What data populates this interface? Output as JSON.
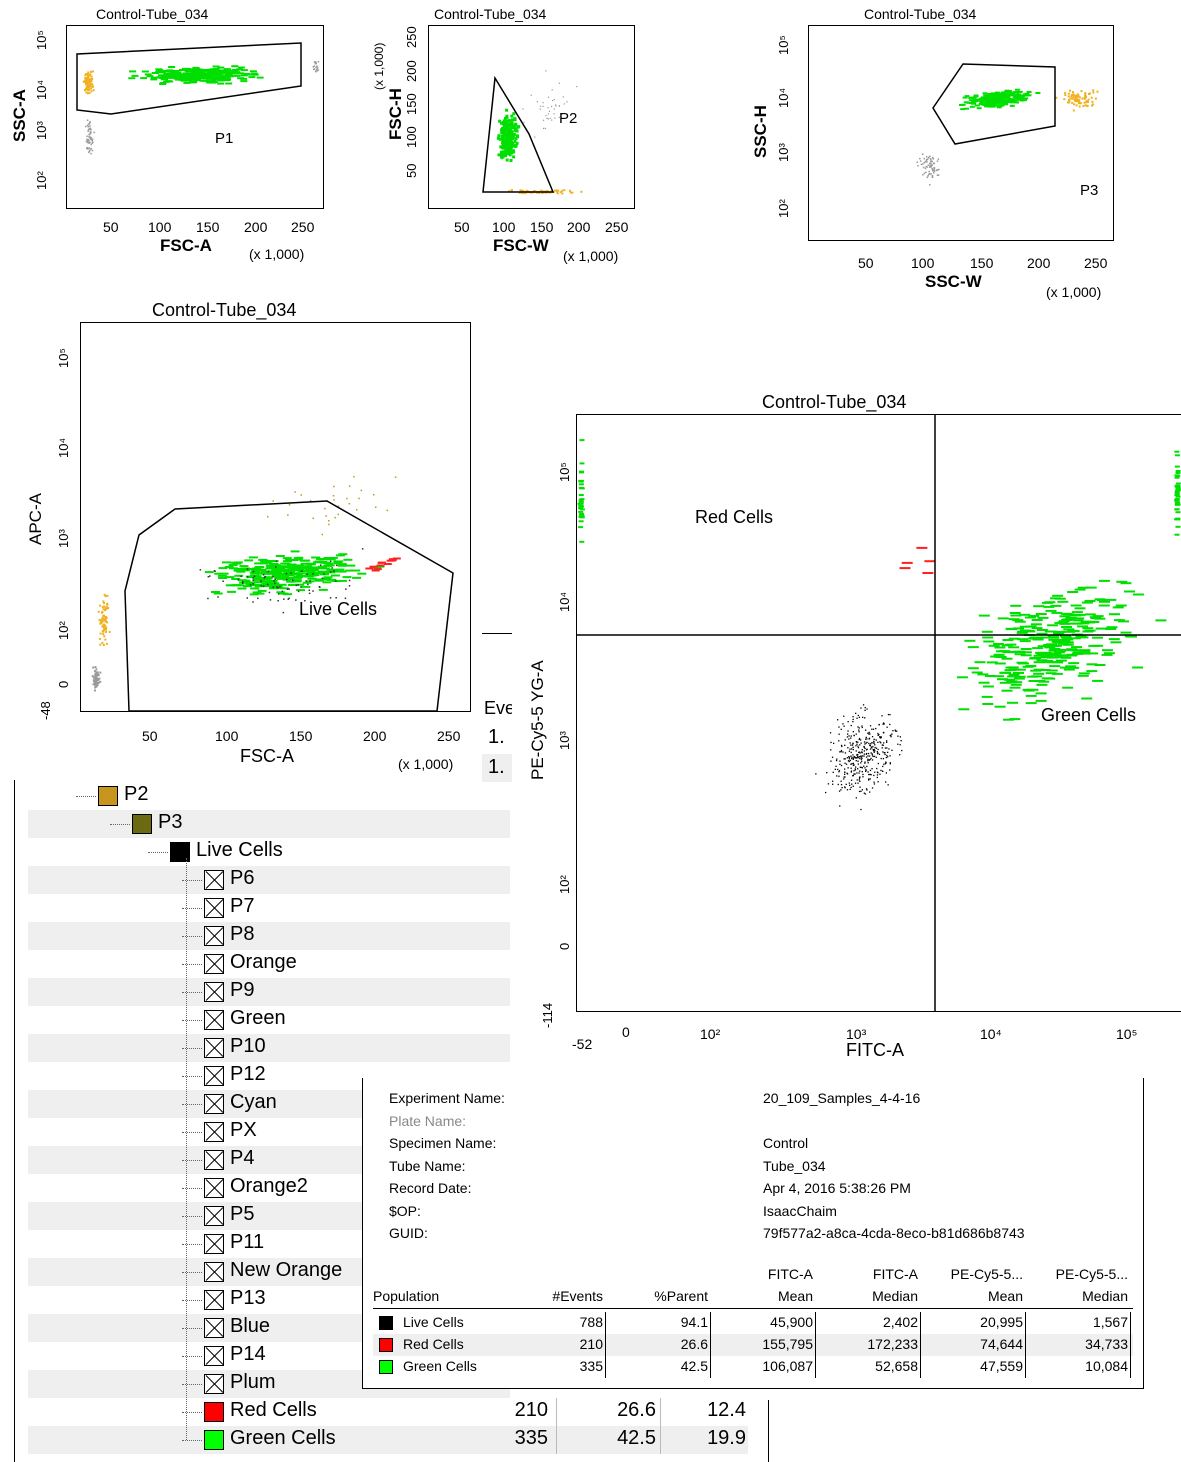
{
  "plots": {
    "p1": {
      "title": "Control-Tube_034",
      "xlabel": "FSC-A",
      "ylabel": "SSC-A",
      "mult": "(x 1,000)",
      "xticks": [
        "50",
        "100",
        "150",
        "200",
        "250"
      ],
      "yticks": [
        "10^2",
        "10^3",
        "10^4",
        "10^5"
      ],
      "gate": "P1"
    },
    "p2": {
      "title": "Control-Tube_034",
      "xlabel": "FSC-W",
      "ylabel": "FSC-H",
      "ymult": "(x 1,000)",
      "mult": "(x 1,000)",
      "xticks": [
        "50",
        "100",
        "150",
        "200",
        "250"
      ],
      "yticks": [
        "50",
        "100",
        "150",
        "200",
        "250"
      ],
      "gate": "P2"
    },
    "p3": {
      "title": "Control-Tube_034",
      "xlabel": "SSC-W",
      "ylabel": "SSC-H",
      "mult": "(x 1,000)",
      "xticks": [
        "50",
        "100",
        "150",
        "200",
        "250"
      ],
      "yticks": [
        "10^2",
        "10^3",
        "10^4",
        "10^5"
      ],
      "gate": "P3"
    },
    "p4": {
      "title": "Control-Tube_034",
      "xlabel": "FSC-A",
      "ylabel": "APC-A",
      "mult": "(x 1,000)",
      "xticks": [
        "50",
        "100",
        "150",
        "200",
        "250"
      ],
      "yticks": [
        "-48",
        "0",
        "10^2",
        "10^3",
        "10^4",
        "10^5"
      ],
      "gate": "Live Cells"
    },
    "p5": {
      "title": "Control-Tube_034",
      "xlabel": "FITC-A",
      "ylabel": "PE-Cy5-5 YG-A",
      "xticks": [
        "-52",
        "0",
        "10^2",
        "10^3",
        "10^4",
        "10^5"
      ],
      "yticks": [
        "-114",
        "0",
        "10^2",
        "10^3",
        "10^4",
        "10^5"
      ],
      "q_red": "Red Cells",
      "q_green": "Green Cells"
    }
  },
  "partial": {
    "events_header": "Eve",
    "v1": "1.",
    "v2": "1."
  },
  "hierarchy": {
    "items": [
      {
        "label": "P2",
        "color": "#c8961e",
        "indent": 0
      },
      {
        "label": "P3",
        "color": "#6b6a12",
        "indent": 1
      },
      {
        "label": "Live Cells",
        "color": "#000000",
        "indent": 2
      },
      {
        "label": "P6",
        "indent": 3
      },
      {
        "label": "P7",
        "indent": 3
      },
      {
        "label": "P8",
        "indent": 3
      },
      {
        "label": "Orange",
        "indent": 3
      },
      {
        "label": "P9",
        "indent": 3
      },
      {
        "label": "Green",
        "indent": 3
      },
      {
        "label": "P10",
        "indent": 3
      },
      {
        "label": "P12",
        "indent": 3
      },
      {
        "label": "Cyan",
        "indent": 3
      },
      {
        "label": "PX",
        "indent": 3
      },
      {
        "label": "P4",
        "indent": 3
      },
      {
        "label": "Orange2",
        "indent": 3
      },
      {
        "label": "P5",
        "indent": 3
      },
      {
        "label": "P11",
        "indent": 3
      },
      {
        "label": "New Orange",
        "indent": 3
      },
      {
        "label": "P13",
        "indent": 3
      },
      {
        "label": "Blue",
        "indent": 3
      },
      {
        "label": "P14",
        "indent": 3
      },
      {
        "label": "Plum",
        "indent": 3
      },
      {
        "label": "Red Cells",
        "color": "#ff0000",
        "indent": 3,
        "events": "210",
        "parent": "26.6",
        "total": "12.4"
      },
      {
        "label": "Green Cells",
        "color": "#00ff00",
        "indent": 3,
        "events": "335",
        "parent": "42.5",
        "total": "19.9"
      }
    ]
  },
  "stats": {
    "meta": [
      {
        "key": "Experiment Name:",
        "value": "20_109_Samples_4-4-16"
      },
      {
        "key": "Plate Name:",
        "value": "",
        "muted": true
      },
      {
        "key": "Specimen Name:",
        "value": "Control"
      },
      {
        "key": "Tube Name:",
        "value": "Tube_034"
      },
      {
        "key": "Record Date:",
        "value": "Apr 4, 2016 5:38:26 PM"
      },
      {
        "key": "$OP:",
        "value": "IsaacChaim"
      },
      {
        "key": "GUID:",
        "value": "79f577a2-a8ca-4cda-8eco-b81d686b8743"
      }
    ],
    "headers": {
      "population": "Population",
      "events": "#Events",
      "parent": "%Parent",
      "fitc_mean_1": "FITC-A",
      "fitc_mean_2": "Mean",
      "fitc_median_1": "FITC-A",
      "fitc_median_2": "Median",
      "pe_mean_1": "PE-Cy5-5...",
      "pe_mean_2": "Mean",
      "pe_median_1": "PE-Cy5-5...",
      "pe_median_2": "Median"
    },
    "rows": [
      {
        "population": "Live Cells",
        "color": "#000000",
        "events": "788",
        "parent": "94.1",
        "fitc_mean": "45,900",
        "fitc_median": "2,402",
        "pe_mean": "20,995",
        "pe_median": "1,567"
      },
      {
        "population": "Red Cells",
        "color": "#ff0000",
        "events": "210",
        "parent": "26.6",
        "fitc_mean": "155,795",
        "fitc_median": "172,233",
        "pe_mean": "74,644",
        "pe_median": "34,733"
      },
      {
        "population": "Green Cells",
        "color": "#00ff00",
        "events": "335",
        "parent": "42.5",
        "fitc_mean": "106,087",
        "fitc_median": "52,658",
        "pe_mean": "47,559",
        "pe_median": "10,084"
      }
    ]
  }
}
